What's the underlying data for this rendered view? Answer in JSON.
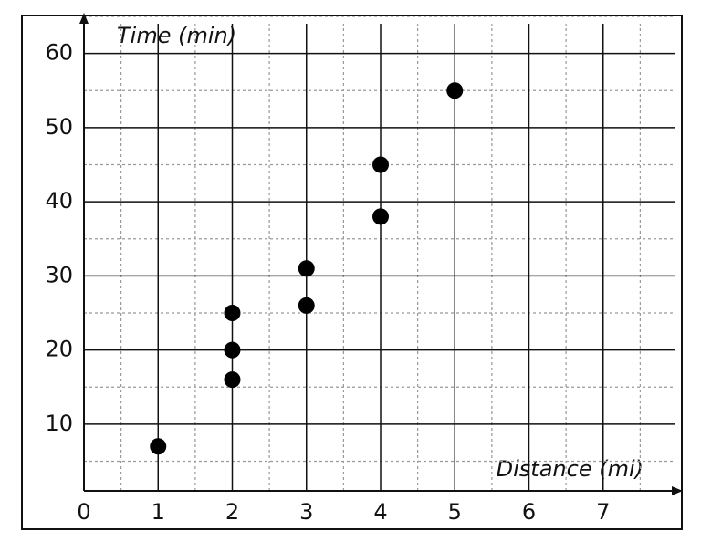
{
  "chart_data": {
    "type": "scatter",
    "x_label": "Distance (mi)",
    "y_label": "Time (min)",
    "x": [
      1,
      2,
      2,
      2,
      3,
      3,
      4,
      4,
      5
    ],
    "values": [
      7,
      16,
      20,
      25,
      26,
      31,
      38,
      45,
      55
    ],
    "color": "#000000",
    "xlim": [
      0,
      8
    ],
    "ylim": [
      1,
      65
    ],
    "xticks": [
      0,
      1,
      2,
      3,
      4,
      5,
      6,
      7
    ],
    "yticks": [
      10,
      20,
      30,
      40,
      50,
      60
    ],
    "x_minor_ticks": [
      0.5,
      1.5,
      2.5,
      3.5,
      4.5,
      5.5,
      6.5,
      7.5
    ],
    "y_minor_ticks": [
      5,
      15,
      25,
      35,
      45,
      55,
      65
    ],
    "grid": true,
    "minor_grid": true
  }
}
